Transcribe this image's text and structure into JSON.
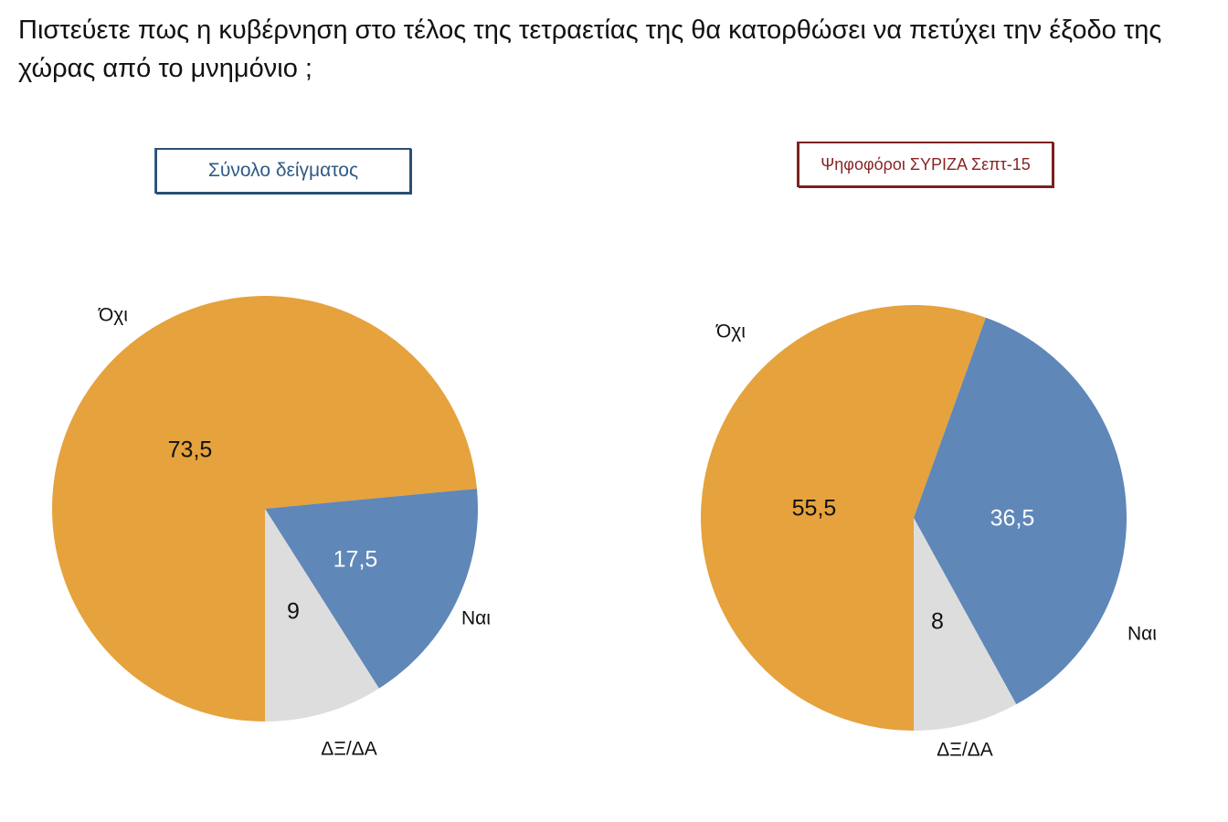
{
  "question": "Πιστεύετε πως η κυβέρνηση στο τέλος της τετραετίας της θα κατορθώσει να πετύχει την έξοδο της χώρας από το μνημόνιο ;",
  "colors": {
    "ochi": "#E5A23D",
    "nai": "#5F87B8",
    "dxda": "#DDDDDD"
  },
  "chart_data": [
    {
      "type": "pie",
      "title": "Σύνολο δείγματος",
      "slices": [
        {
          "label": "Ναι",
          "value": 17.5,
          "value_label": "17,5",
          "color": "#5F87B8",
          "value_text_color": "#ffffff"
        },
        {
          "label": "ΔΞ/ΔΑ",
          "value": 9,
          "value_label": "9",
          "color": "#DDDDDD",
          "value_text_color": "#111111"
        },
        {
          "label": "Όχι",
          "value": 73.5,
          "value_label": "73,5",
          "color": "#E5A23D",
          "value_text_color": "#111111"
        }
      ]
    },
    {
      "type": "pie",
      "title": "Ψηφοφόροι ΣΥΡΙΖΑ Σεπτ-15",
      "slices": [
        {
          "label": "Ναι",
          "value": 36.5,
          "value_label": "36,5",
          "color": "#5F87B8",
          "value_text_color": "#ffffff"
        },
        {
          "label": "ΔΞ/ΔΑ",
          "value": 8,
          "value_label": "8",
          "color": "#DDDDDD",
          "value_text_color": "#111111"
        },
        {
          "label": "Όχι",
          "value": 55.5,
          "value_label": "55,5",
          "color": "#E5A23D",
          "value_text_color": "#111111"
        }
      ]
    }
  ]
}
